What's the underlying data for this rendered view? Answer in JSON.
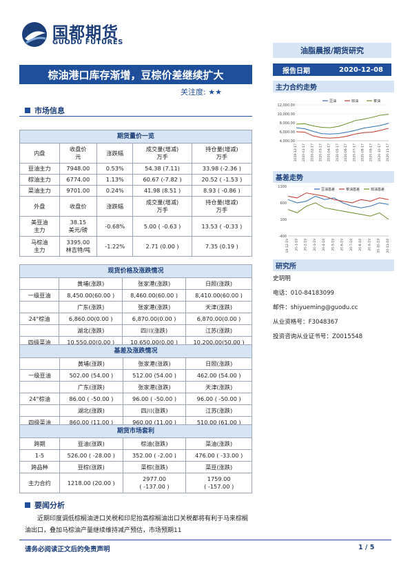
{
  "header": {
    "logo_cn": "国都期货",
    "logo_en": "GUODU FUTURES",
    "category": "油脂晨报/期货研究",
    "title": "棕油港口库存渐增，豆棕价差继续扩大",
    "report_date_label": "报告日期",
    "report_date": "2020-12-08",
    "focus_label": "关注度:",
    "focus_stars": "★★"
  },
  "sections": {
    "market": "市场信息",
    "analysis": "要闻分析"
  },
  "futures_table": {
    "title": "期货量价一览",
    "header1": [
      "内盘",
      "收盘价\n元",
      "涨跌幅",
      "成交量(增减)\n万手",
      "持仓量(增减)\n万手"
    ],
    "rows1": [
      [
        "豆油主力",
        "7948.00",
        "0.53%",
        "54.38 (7.11)",
        "33.98 (-2.36 )"
      ],
      [
        "棕油主力",
        "6774.00",
        "1.13%",
        "60.67 (-7.82 )",
        "20.52 ( -1.53 )"
      ],
      [
        "菜油主力",
        "9701.00",
        "0.24%",
        "41.98 (8.51 )",
        "8.93 ( -0.86 )"
      ]
    ],
    "header2": [
      "外盘",
      "收盘价",
      "涨跌幅",
      "成交量(增减)\n万手",
      "持仓量(增减)\n万手"
    ],
    "rows2": [
      [
        "美豆油\n主力",
        "38.15\n美元/磅",
        "-0.68%",
        "5.00 ( -0.63 )",
        "13.53 ( -0.33 )"
      ],
      [
        "马棕油\n主力",
        "3395.00\n林吉特/吨",
        "-1.22%",
        "2.71 (0.00 )",
        "7.35 (0.19 )"
      ]
    ]
  },
  "spot_table": {
    "title": "现货价格及涨跌情况",
    "rows": [
      [
        "",
        "黄埔(涨跌)",
        "张家港(涨跌)",
        "日照(涨跌)"
      ],
      [
        "一级豆油",
        "8,450.00(60.00 )",
        "8,460.00(60.00 )",
        "8,410.00(60.00 )"
      ],
      [
        "",
        "广东(涨跌)",
        "张家港(涨跌)",
        "天津(涨跌)"
      ],
      [
        "24°棕油",
        "6,860.00(0.00 )",
        "6,870.00(0.00 )",
        "6,870.00(0.00 )"
      ],
      [
        "",
        "湖北(涨跌)",
        "四川(涨跌)",
        "江苏(涨跌)"
      ],
      [
        "四级菜油",
        "10,550.00(0.00 )",
        "10,650.00(0.00 )",
        "10,200.00(50.00 )"
      ]
    ]
  },
  "basis_table": {
    "title": "基差及涨跌情况",
    "rows": [
      [
        "",
        "黄埔(涨跌)",
        "张家港(涨跌)",
        "日照(涨跌)"
      ],
      [
        "一级豆油",
        "502.00 (54.00 )",
        "512.00 (54.00 )",
        "462.00 (54.00 )"
      ],
      [
        "",
        "广东(涨跌)",
        "张家港(涨跌)",
        "天津(涨跌)"
      ],
      [
        "24°棕油",
        "86.00 ( -50.00 )",
        "96.00 ( -50.00 )",
        "96.00 ( -50.00 )"
      ],
      [
        "",
        "湖北(涨跌)",
        "四川(涨跌)",
        "江苏(涨跌)"
      ],
      [
        "四级菜油",
        "860.00 (11.00 )",
        "960.00 (11.00 )",
        "510.00 (61.00 )"
      ]
    ]
  },
  "arb_table": {
    "title": "期货市场套利",
    "rows": [
      [
        "跨期",
        "豆油(涨跌)",
        "棕油(涨跌)",
        "菜油(涨跌)"
      ],
      [
        "1-5",
        "526.00 ( -28.00 )",
        "352.00 ( -2.00 )",
        "476.00 ( -33.00 )"
      ],
      [
        "跨品种",
        "豆棕(涨跌)",
        "菜棕(涨跌)",
        "菜豆(涨跌)"
      ],
      [
        "主力合约",
        "1218.00 (20.00 )",
        "2977.00\n( -137.00 )",
        "1759.00\n( -157.00 )"
      ]
    ]
  },
  "right": {
    "main_contract_title": "主力合约走势",
    "basis_title": "基差走势",
    "research_title": "研究所",
    "researcher": "史玥明",
    "phone": "电话：010-84183099",
    "email": "邮件：shiyueming@guodu.cc",
    "qualification": "从业资格号：F3048367",
    "advisory": "投资咨询从业证书号：Z0015548"
  },
  "analysis_text": "近期印度调低棕榈油进口关税和印尼抬高棕榈油出口关税都将有利于马来棕榈油出口，叠加马棕油产量继续维持减产预估，市场预期11",
  "footer": {
    "disclaimer": "请务必阅读正文后的免责声明",
    "page": "1 / 5"
  },
  "chart_data": [
    {
      "type": "line",
      "title": "",
      "x": [
        "2019-12-17",
        "2020-01-17",
        "2020-02-17",
        "2020-03-17",
        "2020-04-17",
        "2020-05-17",
        "2020-06-17",
        "2020-07-17",
        "2020-08-17",
        "2020-09-17",
        "2020-10-17",
        "2020-11-17"
      ],
      "ylim": [
        4000,
        12000
      ],
      "yticks": [
        "12,000.00",
        "10,000.00",
        "8,000.00",
        "6,000.00",
        "4,000.00"
      ],
      "legend_position": "top-right",
      "series": [
        {
          "name": "豆油",
          "color": "#2f6fb5",
          "values": [
            6900,
            6700,
            6100,
            5600,
            5500,
            5600,
            5900,
            6300,
            6800,
            7100,
            7400,
            7900
          ]
        },
        {
          "name": "棕油",
          "color": "#c0392b",
          "values": [
            6000,
            5900,
            5100,
            4700,
            4600,
            4700,
            5000,
            5500,
            5800,
            5900,
            6300,
            6800
          ]
        },
        {
          "name": "菜油",
          "color": "#6b8e23",
          "values": [
            7700,
            7800,
            7300,
            7000,
            6900,
            7200,
            7800,
            8500,
            8800,
            9200,
            9700,
            9900
          ]
        }
      ]
    },
    {
      "type": "line",
      "title": "",
      "x": [
        "19-12-19",
        "20-1-19",
        "20-2-19",
        "20-3-19",
        "20-4-19",
        "20-5-19",
        "20-6-19",
        "20-7-19",
        "20-8-19",
        "20-9-19",
        "20-10-19",
        "20-11-19"
      ],
      "ylim": [
        -400,
        1100
      ],
      "yticks": [
        "1100",
        "600",
        "100",
        "-400"
      ],
      "legend_position": "top-right",
      "series": [
        {
          "name": "豆油基差",
          "color": "#2f6fb5",
          "values": [
            700,
            600,
            650,
            800,
            700,
            750,
            600,
            500,
            450,
            500,
            600,
            550
          ]
        },
        {
          "name": "菜油基差",
          "color": "#c0392b",
          "values": [
            800,
            750,
            900,
            850,
            800,
            700,
            650,
            600,
            700,
            650,
            750,
            700
          ]
        },
        {
          "name": "棕油基差",
          "color": "#6b8e23",
          "values": [
            400,
            300,
            500,
            600,
            450,
            400,
            350,
            300,
            250,
            200,
            300,
            100
          ]
        }
      ]
    }
  ]
}
